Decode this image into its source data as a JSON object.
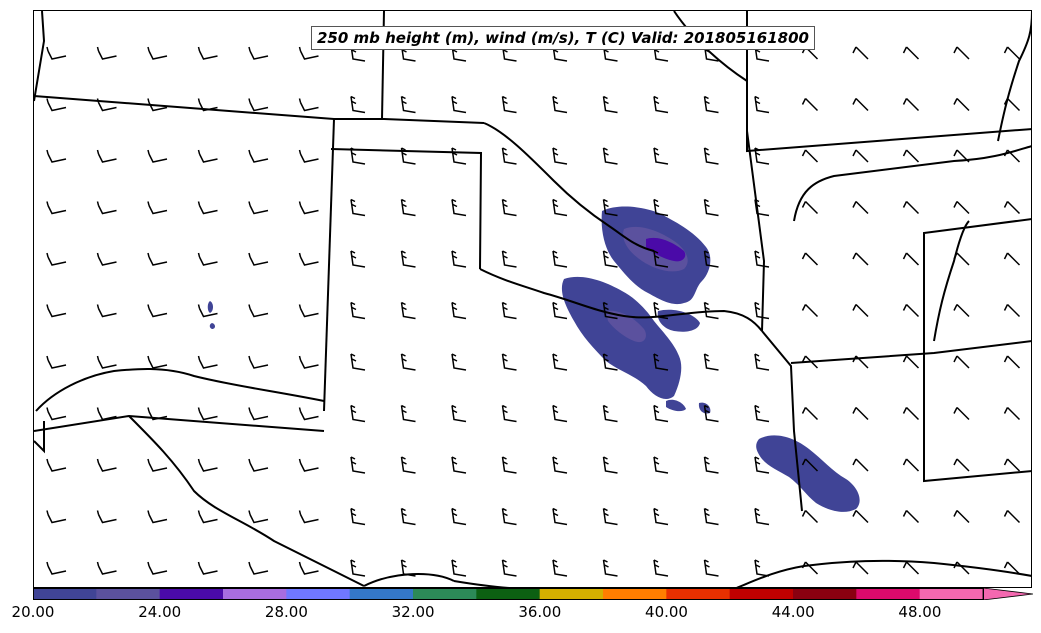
{
  "title": "250 mb height (m), wind (m/s), T (C) Valid: 201805161800",
  "colorbar": {
    "labels": [
      "20.00",
      "24.00",
      "28.00",
      "32.00",
      "36.00",
      "40.00",
      "44.00",
      "48.00"
    ],
    "colors": [
      "#404496",
      "#5b519e",
      "#4a0aa8",
      "#a86de0",
      "#7078ff",
      "#3478c8",
      "#2c8a58",
      "#0c6012",
      "#d4b000",
      "#ff7e00",
      "#e83000",
      "#c00000",
      "#8a0010",
      "#dc0a6c",
      "#f468b0"
    ],
    "extend": "max"
  }
}
